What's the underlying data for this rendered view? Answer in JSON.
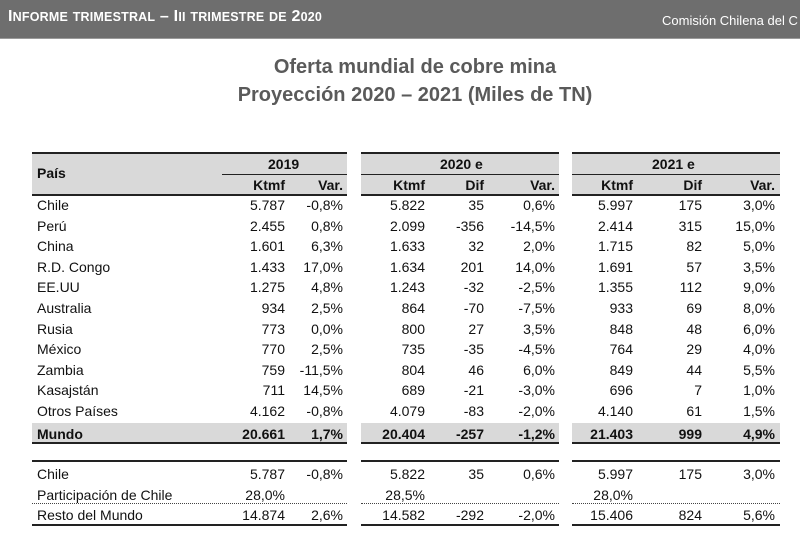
{
  "header": {
    "left": "Informe trimestral  –  III trimestre de 2020",
    "right": "Comisión Chilena del C"
  },
  "title": {
    "line1": "Oferta mundial de cobre mina",
    "line2": "Proyección 2020 – 2021 (Miles de TN)"
  },
  "table": {
    "col_pais": "País",
    "groups": [
      "2019",
      "2020 e",
      "2021 e"
    ],
    "sub": {
      "ktmf": "Ktmf",
      "var": "Var.",
      "dif": "Dif"
    },
    "rows": [
      [
        "Chile",
        "5.787",
        "-0,8%",
        "5.822",
        "35",
        "0,6%",
        "5.997",
        "175",
        "3,0%"
      ],
      [
        "Perú",
        "2.455",
        "0,8%",
        "2.099",
        "-356",
        "-14,5%",
        "2.414",
        "315",
        "15,0%"
      ],
      [
        "China",
        "1.601",
        "6,3%",
        "1.633",
        "32",
        "2,0%",
        "1.715",
        "82",
        "5,0%"
      ],
      [
        "R.D. Congo",
        "1.433",
        "17,0%",
        "1.634",
        "201",
        "14,0%",
        "1.691",
        "57",
        "3,5%"
      ],
      [
        "EE.UU",
        "1.275",
        "4,8%",
        "1.243",
        "-32",
        "-2,5%",
        "1.355",
        "112",
        "9,0%"
      ],
      [
        "Australia",
        "934",
        "2,5%",
        "864",
        "-70",
        "-7,5%",
        "933",
        "69",
        "8,0%"
      ],
      [
        "Rusia",
        "773",
        "0,0%",
        "800",
        "27",
        "3,5%",
        "848",
        "48",
        "6,0%"
      ],
      [
        "México",
        "770",
        "2,5%",
        "735",
        "-35",
        "-4,5%",
        "764",
        "29",
        "4,0%"
      ],
      [
        "Zambia",
        "759",
        "-11,5%",
        "804",
        "46",
        "6,0%",
        "849",
        "44",
        "5,5%"
      ],
      [
        "Kasajstán",
        "711",
        "14,5%",
        "689",
        "-21",
        "-3,0%",
        "696",
        "7",
        "1,0%"
      ],
      [
        "Otros Países",
        "4.162",
        "-0,8%",
        "4.079",
        "-83",
        "-2,0%",
        "4.140",
        "61",
        "1,5%"
      ]
    ],
    "total": [
      "Mundo",
      "20.661",
      "1,7%",
      "20.404",
      "-257",
      "-1,2%",
      "21.403",
      "999",
      "4,9%"
    ],
    "bottom_rows": [
      [
        "Chile",
        "5.787",
        "-0,8%",
        "5.822",
        "35",
        "0,6%",
        "5.997",
        "175",
        "3,0%"
      ],
      [
        "Participación de Chile",
        "28,0%",
        "",
        "28,5%",
        "",
        "",
        "28,0%",
        "",
        ""
      ],
      [
        "Resto del Mundo",
        "14.874",
        "2,6%",
        "14.582",
        "-292",
        "-2,0%",
        "15.406",
        "824",
        "5,6%"
      ]
    ]
  }
}
